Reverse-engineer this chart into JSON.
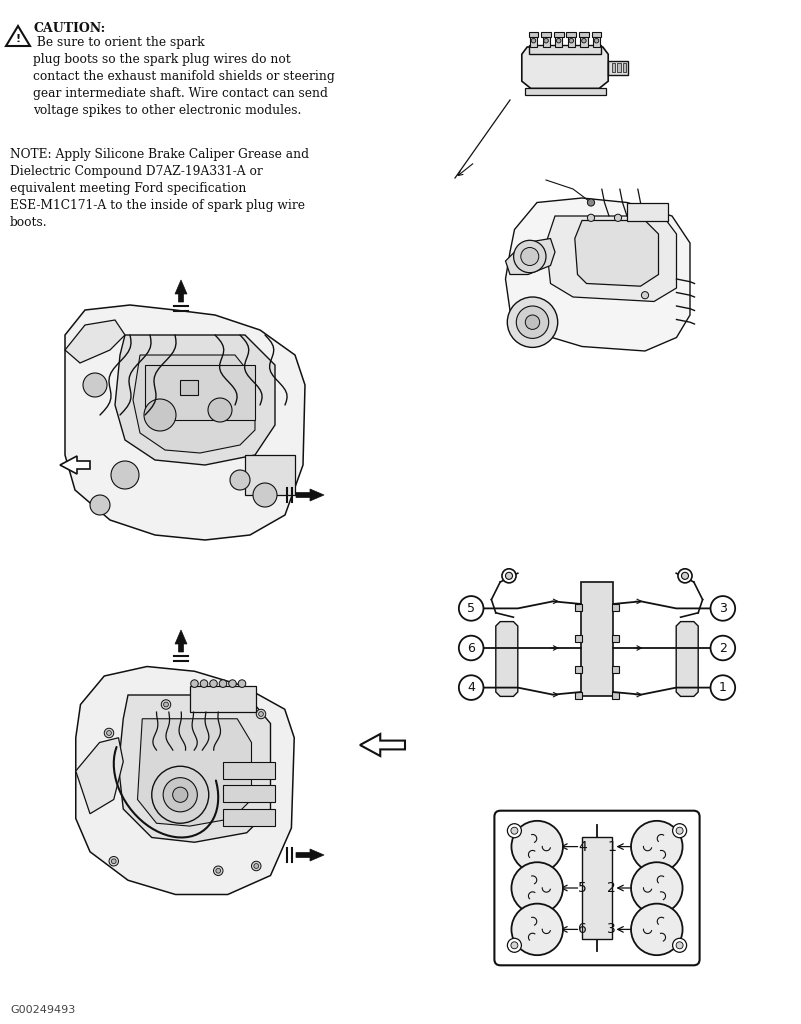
{
  "bg_color": "#ffffff",
  "text_color": "#111111",
  "caution_title": "⚠  CAUTION:",
  "caution_body": " Be sure to orient the spark\nplug boots so the spark plug wires do not\ncontact the exhaust manifold shields or steering\ngear intermediate shaft. Wire contact can send\nvoltage spikes to other electronic modules.",
  "note_text": "NOTE: Apply Silicone Brake Caliper Grease and\nDielectric Compound D7AZ-19A331-A or\nequivalent meeting Ford specification\nESE-M1C171-A to the inside of spark plug wire\nboots.",
  "footer_text": "G00249493",
  "figure_width": 8.01,
  "figure_height": 10.24,
  "dpi": 100,
  "lc": "#111111",
  "lc_gray": "#888888"
}
